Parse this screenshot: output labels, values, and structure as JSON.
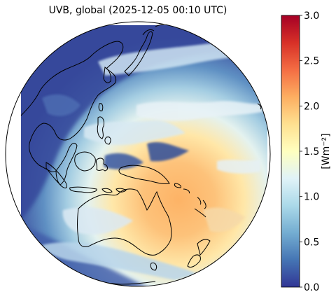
{
  "title": "UVB, global (2025-12-05 00:10 UTC)",
  "colorbar": {
    "label": "[Wm⁻²]",
    "min": 0.0,
    "max": 3.0,
    "ticks": [
      "0.0",
      "0.5",
      "1.0",
      "1.5",
      "2.0",
      "2.5",
      "3.0"
    ],
    "colormap": [
      "#313695",
      "#4575b4",
      "#74add1",
      "#abd9e9",
      "#e0f3f8",
      "#ffffbf",
      "#fee090",
      "#fdae61",
      "#f46d43",
      "#d73027",
      "#a50026"
    ]
  },
  "map": {
    "projection": "orthographic",
    "coastline_color": "#000000"
  }
}
